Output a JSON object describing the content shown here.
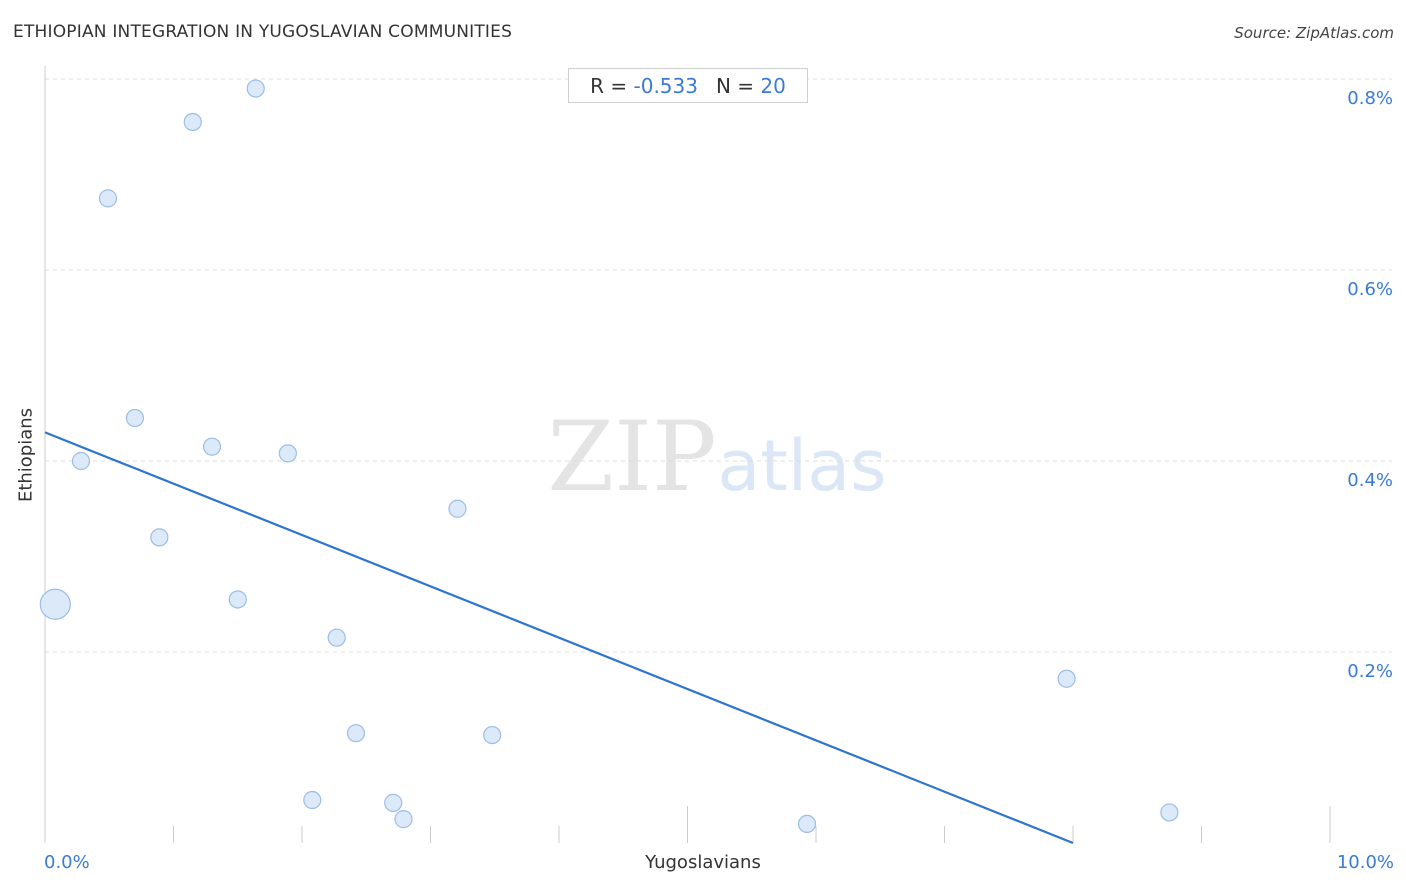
{
  "header": {
    "title": "ETHIOPIAN INTEGRATION IN YUGOSLAVIAN COMMUNITIES",
    "source": "Source: ZipAtlas.com"
  },
  "stats": {
    "r_label": "R =",
    "r_value": "-0.533",
    "n_label": "N =",
    "n_value": "20"
  },
  "watermark": {
    "zip": "ZIP",
    "atlas": "atlas"
  },
  "colors": {
    "point_fill": "#dce9f9",
    "point_stroke": "#9bbde6",
    "trend_line": "#2f74d0",
    "tick_label": "#3a7bd5",
    "grid": "#dddddd"
  },
  "chart_data": {
    "type": "scatter",
    "title": "ETHIOPIAN INTEGRATION IN YUGOSLAVIAN COMMUNITIES",
    "xlabel": "Yugoslavians",
    "ylabel": "Ethiopians",
    "xlim": [
      0,
      10
    ],
    "ylim": [
      0,
      0.8
    ],
    "x_tick_labels": [
      "0.0%",
      "10.0%"
    ],
    "y_ticks": [
      0.2,
      0.4,
      0.6,
      0.8
    ],
    "y_tick_labels": [
      "0.2%",
      "0.4%",
      "0.6%",
      "0.8%"
    ],
    "grid": "horizontal dashed",
    "points": [
      {
        "x": 0.08,
        "y": 0.25,
        "size": "large"
      },
      {
        "x": 0.28,
        "y": 0.4,
        "size": "medium"
      },
      {
        "x": 0.49,
        "y": 0.675,
        "size": "medium"
      },
      {
        "x": 0.7,
        "y": 0.445,
        "size": "medium"
      },
      {
        "x": 0.89,
        "y": 0.32,
        "size": "medium"
      },
      {
        "x": 1.15,
        "y": 0.755,
        "size": "medium"
      },
      {
        "x": 1.3,
        "y": 0.415,
        "size": "medium"
      },
      {
        "x": 1.5,
        "y": 0.255,
        "size": "medium"
      },
      {
        "x": 1.64,
        "y": 0.79,
        "size": "medium"
      },
      {
        "x": 1.89,
        "y": 0.408,
        "size": "medium"
      },
      {
        "x": 2.08,
        "y": 0.045,
        "size": "medium"
      },
      {
        "x": 2.27,
        "y": 0.215,
        "size": "medium"
      },
      {
        "x": 2.42,
        "y": 0.115,
        "size": "medium"
      },
      {
        "x": 2.71,
        "y": 0.042,
        "size": "medium"
      },
      {
        "x": 2.79,
        "y": 0.025,
        "size": "medium"
      },
      {
        "x": 3.21,
        "y": 0.35,
        "size": "medium"
      },
      {
        "x": 3.48,
        "y": 0.113,
        "size": "medium"
      },
      {
        "x": 5.93,
        "y": 0.02,
        "size": "medium"
      },
      {
        "x": 7.95,
        "y": 0.172,
        "size": "medium"
      },
      {
        "x": 8.75,
        "y": 0.032,
        "size": "medium"
      }
    ],
    "trend_line": {
      "x": [
        0,
        8.0
      ],
      "y": [
        0.43,
        0.0
      ]
    }
  }
}
